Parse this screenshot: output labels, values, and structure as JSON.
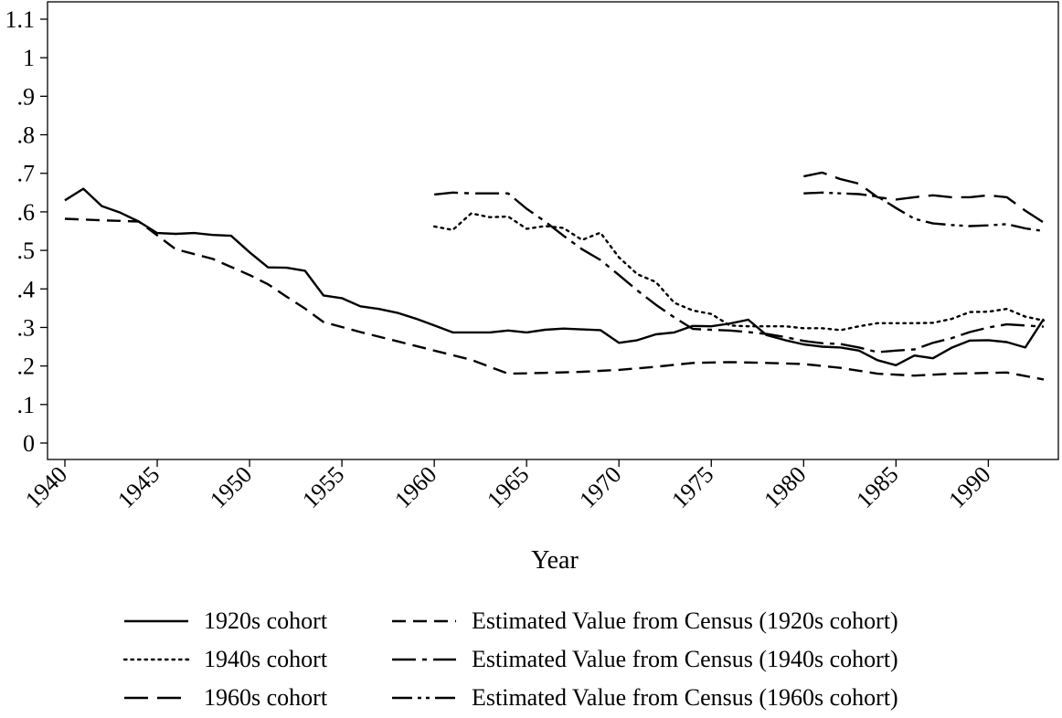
{
  "chart_data": {
    "type": "line",
    "xlabel": "Year",
    "ylabel": "",
    "xlim": [
      1940,
      1993
    ],
    "ylim": [
      0,
      1.1
    ],
    "x_ticks": [
      1940,
      1945,
      1950,
      1955,
      1960,
      1965,
      1970,
      1975,
      1980,
      1985,
      1990
    ],
    "x_tick_labels": [
      "1940",
      "1945",
      "1950",
      "1955",
      "1960",
      "1965",
      "1970",
      "1975",
      "1980",
      "1985",
      "1990"
    ],
    "y_ticks": [
      0,
      0.1,
      0.2,
      0.3,
      0.4,
      0.5,
      0.6,
      0.7,
      0.8,
      0.9,
      1,
      1.1
    ],
    "y_tick_labels": [
      "0",
      ".1",
      ".2",
      ".3",
      ".4",
      ".5",
      ".6",
      ".7",
      ".8",
      ".9",
      "1",
      "1.1"
    ],
    "grid": false,
    "legend_position": "bottom",
    "series": [
      {
        "name": "1920s cohort",
        "dash": "solid",
        "x": [
          1940,
          1941,
          1942,
          1943,
          1944,
          1945,
          1946,
          1947,
          1948,
          1949,
          1950,
          1951,
          1952,
          1953,
          1954,
          1955,
          1956,
          1957,
          1958,
          1959,
          1960,
          1961,
          1962,
          1963,
          1964,
          1965,
          1966,
          1967,
          1968,
          1969,
          1970,
          1971,
          1972,
          1973,
          1974,
          1975,
          1976,
          1977,
          1978,
          1979,
          1980,
          1981,
          1982,
          1983,
          1984,
          1985,
          1986,
          1987,
          1988,
          1989,
          1990,
          1991,
          1992,
          1993
        ],
        "y": [
          0.63,
          0.66,
          0.615,
          0.598,
          0.575,
          0.545,
          0.543,
          0.545,
          0.54,
          0.538,
          0.495,
          0.456,
          0.455,
          0.447,
          0.383,
          0.376,
          0.355,
          0.348,
          0.338,
          0.323,
          0.305,
          0.287,
          0.287,
          0.287,
          0.292,
          0.287,
          0.294,
          0.297,
          0.295,
          0.293,
          0.26,
          0.267,
          0.282,
          0.287,
          0.304,
          0.303,
          0.31,
          0.32,
          0.28,
          0.267,
          0.256,
          0.25,
          0.248,
          0.24,
          0.215,
          0.202,
          0.227,
          0.22,
          0.247,
          0.266,
          0.267,
          0.262,
          0.248,
          0.322
        ]
      },
      {
        "name": "1940s cohort",
        "dash": "dot",
        "x": [
          1960,
          1961,
          1962,
          1963,
          1964,
          1965,
          1966,
          1967,
          1968,
          1969,
          1970,
          1971,
          1972,
          1973,
          1974,
          1975,
          1976,
          1977,
          1978,
          1979,
          1980,
          1981,
          1982,
          1983,
          1984,
          1985,
          1986,
          1987,
          1988,
          1989,
          1990,
          1991,
          1992,
          1993
        ],
        "y": [
          0.562,
          0.553,
          0.596,
          0.586,
          0.588,
          0.556,
          0.563,
          0.558,
          0.527,
          0.546,
          0.482,
          0.438,
          0.418,
          0.364,
          0.344,
          0.335,
          0.305,
          0.303,
          0.303,
          0.303,
          0.298,
          0.298,
          0.293,
          0.303,
          0.311,
          0.311,
          0.311,
          0.312,
          0.322,
          0.34,
          0.341,
          0.348,
          0.328,
          0.318
        ]
      },
      {
        "name": "1960s cohort",
        "dash": "longdash",
        "x": [
          1980,
          1981,
          1982,
          1983,
          1984,
          1985,
          1986,
          1987,
          1988,
          1989,
          1990,
          1991,
          1992,
          1993
        ],
        "y": [
          0.692,
          0.702,
          0.685,
          0.673,
          0.638,
          0.632,
          0.638,
          0.643,
          0.638,
          0.638,
          0.643,
          0.638,
          0.603,
          0.572
        ]
      },
      {
        "name": "Estimated Value from Census (1920s cohort)",
        "dash": "dash",
        "x": [
          1940,
          1942,
          1944,
          1946,
          1948,
          1950,
          1951,
          1952,
          1953,
          1954,
          1956,
          1958,
          1960,
          1962,
          1964,
          1966,
          1968,
          1970,
          1972,
          1974,
          1976,
          1978,
          1980,
          1982,
          1984,
          1986,
          1988,
          1990,
          1991,
          1993
        ],
        "y": [
          0.582,
          0.578,
          0.575,
          0.503,
          0.478,
          0.436,
          0.412,
          0.38,
          0.349,
          0.314,
          0.288,
          0.264,
          0.24,
          0.216,
          0.18,
          0.182,
          0.185,
          0.19,
          0.198,
          0.208,
          0.21,
          0.208,
          0.205,
          0.195,
          0.18,
          0.175,
          0.18,
          0.182,
          0.183,
          0.165
        ]
      },
      {
        "name": "Estimated Value from Census (1940s cohort)",
        "dash": "dashdot",
        "x": [
          1960,
          1961,
          1962,
          1963,
          1964,
          1965,
          1966,
          1967,
          1968,
          1969,
          1970,
          1971,
          1972,
          1973,
          1974,
          1975,
          1976,
          1977,
          1978,
          1979,
          1980,
          1981,
          1982,
          1983,
          1984,
          1985,
          1986,
          1987,
          1988,
          1989,
          1990,
          1991,
          1992,
          1993
        ],
        "y": [
          0.645,
          0.65,
          0.648,
          0.648,
          0.648,
          0.608,
          0.575,
          0.538,
          0.503,
          0.475,
          0.436,
          0.396,
          0.359,
          0.326,
          0.296,
          0.294,
          0.292,
          0.288,
          0.283,
          0.275,
          0.265,
          0.259,
          0.257,
          0.248,
          0.236,
          0.24,
          0.243,
          0.26,
          0.272,
          0.288,
          0.3,
          0.308,
          0.305,
          0.302
        ]
      },
      {
        "name": "Estimated Value from Census (1960s cohort)",
        "dash": "dashdotdot",
        "x": [
          1980,
          1981,
          1982,
          1983,
          1984,
          1985,
          1986,
          1987,
          1988,
          1989,
          1990,
          1991,
          1992,
          1993
        ],
        "y": [
          0.648,
          0.65,
          0.648,
          0.646,
          0.64,
          0.61,
          0.582,
          0.57,
          0.566,
          0.563,
          0.565,
          0.568,
          0.557,
          0.55
        ]
      }
    ]
  }
}
